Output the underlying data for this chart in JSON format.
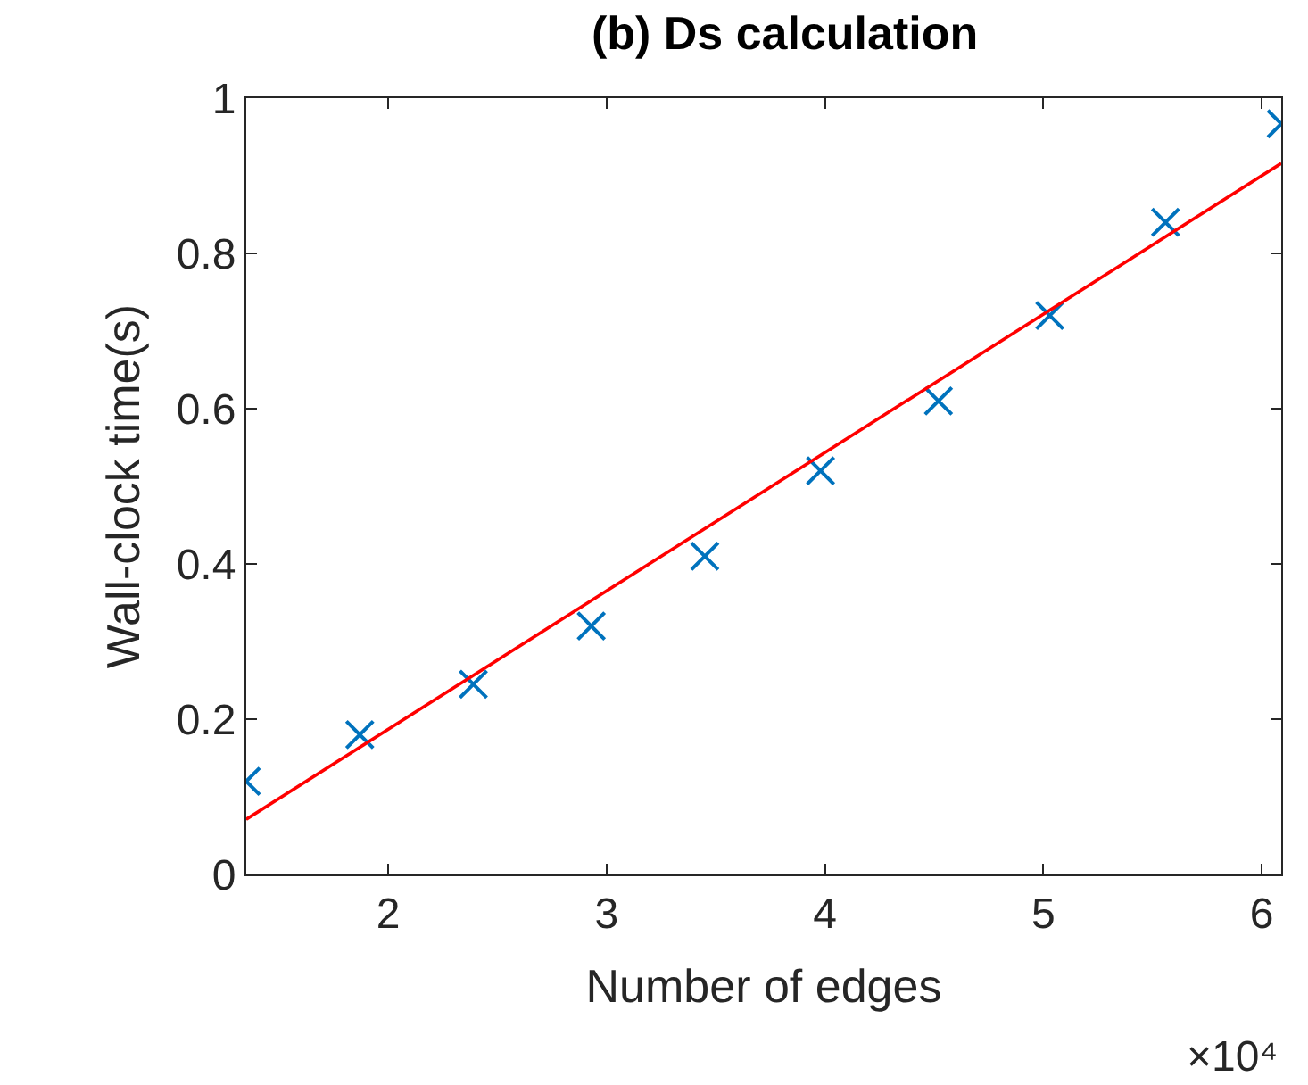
{
  "chart_data": {
    "type": "scatter",
    "title": "(b) Ds calculation",
    "xlabel": "Number of edges",
    "ylabel": "Wall-clock time(s)",
    "annotations": [
      "×10⁴"
    ],
    "xlim": [
      1.35,
      6.09
    ],
    "xticks": [
      2,
      3,
      4,
      5,
      6
    ],
    "ylim": [
      0,
      1
    ],
    "yticks": [
      0,
      0.2,
      0.4,
      0.6,
      0.8,
      1
    ],
    "marker": "cross",
    "series": [
      {
        "color": "#0072bd",
        "x": [
          1.35,
          1.87,
          2.39,
          2.93,
          3.45,
          3.98,
          4.52,
          5.03,
          5.56,
          6.09
        ],
        "values": [
          0.12,
          0.18,
          0.245,
          0.32,
          0.41,
          0.52,
          0.61,
          0.72,
          0.84,
          0.967
        ]
      },
      {
        "type": "line",
        "color": "#ff0000",
        "x": [
          1.35,
          6.09
        ],
        "values": [
          0.071,
          0.916
        ],
        "marker": "none",
        "line_style": "solid"
      }
    ]
  }
}
